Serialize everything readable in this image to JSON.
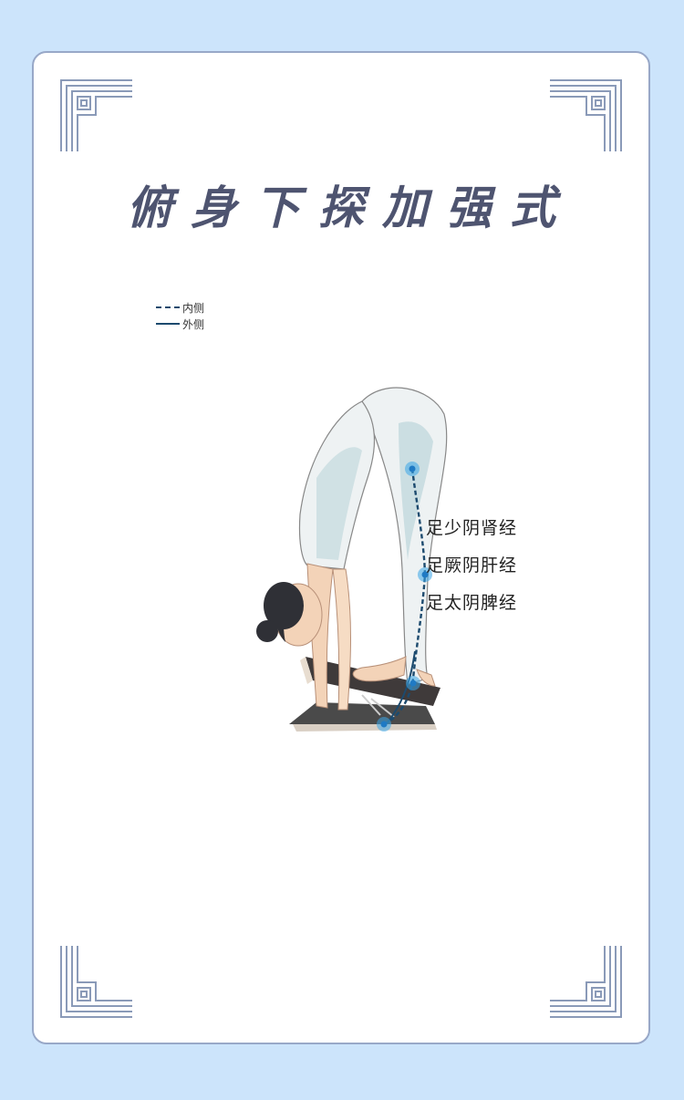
{
  "title": "俯身下探加强式",
  "legend": {
    "items": [
      {
        "label": "内侧",
        "style": "dashed"
      },
      {
        "label": "外侧",
        "style": "solid"
      }
    ]
  },
  "meridians": [
    {
      "label": "足少阴肾经"
    },
    {
      "label": "足厥阴肝经"
    },
    {
      "label": "足太阴脾经"
    }
  ],
  "colors": {
    "background": "#cce4fb",
    "card_border": "#98a8c8",
    "title": "#4e5470",
    "meridian_line": "#1c4a6e",
    "acupoint": "#3aa6e8"
  }
}
